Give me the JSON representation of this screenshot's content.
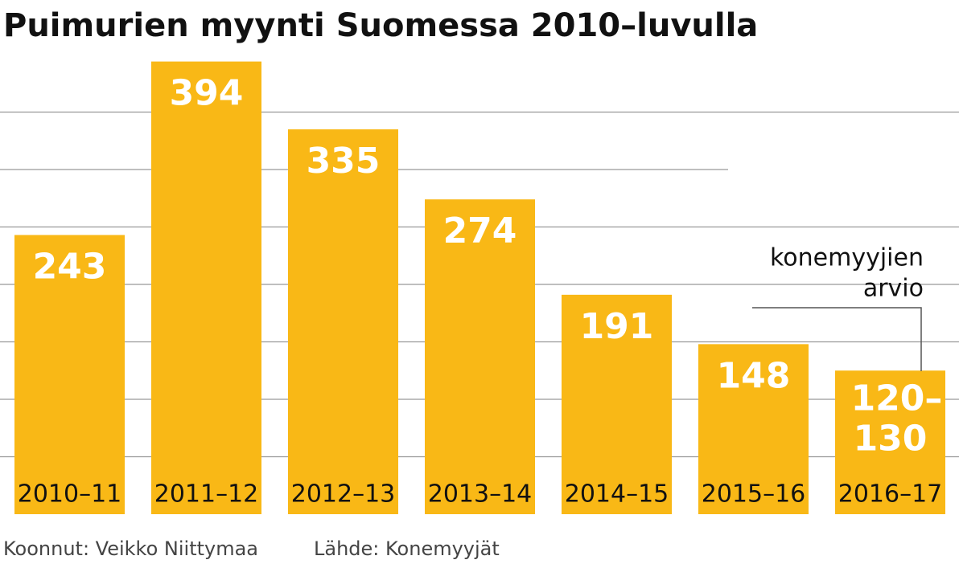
{
  "chart_data": {
    "type": "bar",
    "title": "Puimurien myynti Suomessa 2010–luvulla",
    "categories": [
      "2010–11",
      "2011–12",
      "2012–13",
      "2013–14",
      "2014–15",
      "2015–16",
      "2016–17"
    ],
    "values": [
      243,
      394,
      335,
      274,
      191,
      148,
      125
    ],
    "value_labels": [
      "243",
      "394",
      "335",
      "274",
      "191",
      "148",
      "120–130"
    ],
    "color": "#f9b816",
    "ylim": [
      0,
      400
    ],
    "gridlines": [
      50,
      100,
      150,
      200,
      250,
      300,
      350
    ],
    "grid": true,
    "annotation": [
      "konemyyjien",
      "arvio"
    ],
    "footer": [
      "Koonnut: Veikko Niittymaa",
      "Lähde: Konemyyjät"
    ]
  }
}
